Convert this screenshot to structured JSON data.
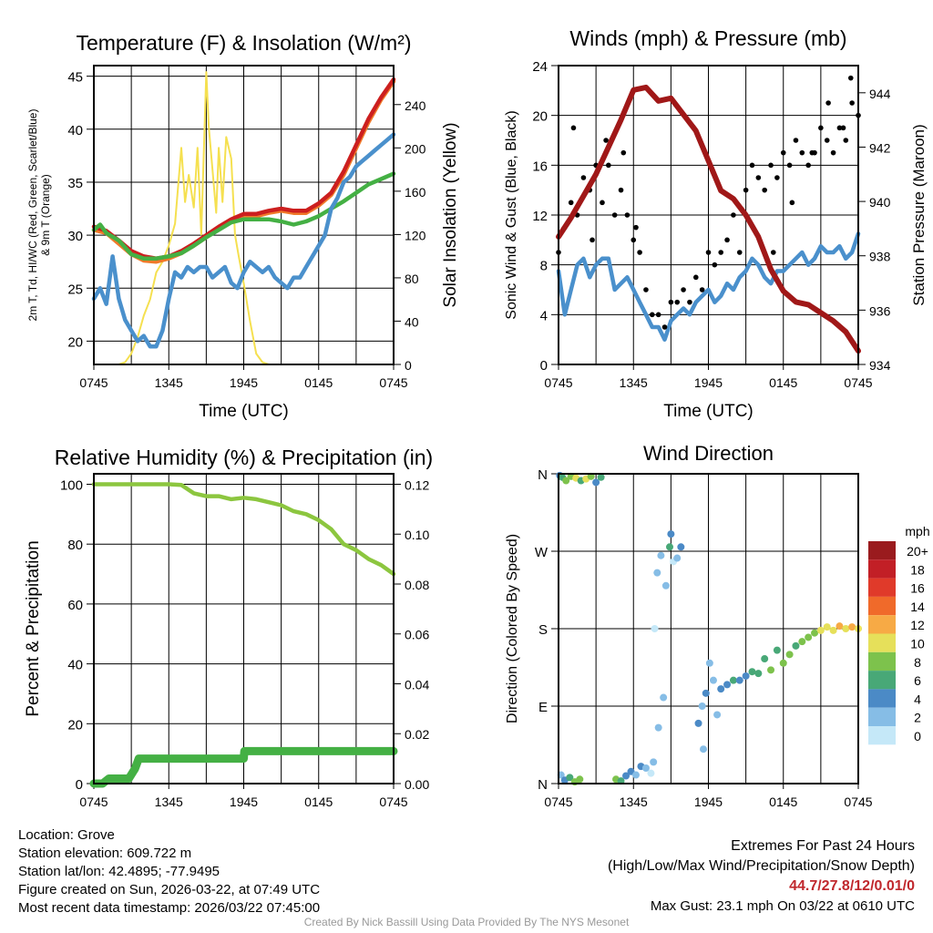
{
  "footer": {
    "location": "Location: Grove",
    "elevation": "Station elevation: 609.722 m",
    "latlon": "Station lat/lon: 42.4895; -77.9495",
    "created": "Figure created on Sun, 2026-03-22, at 07:49 UTC",
    "recent": "Most recent data timestamp: 2026/03/22 07:45:00",
    "extremes_title": "Extremes For Past 24 Hours",
    "extremes_sub": "(High/Low/Max Wind/Precipitation/Snow Depth)",
    "extremes_values": "44.7/27.8/12/0.01/0",
    "max_gust": "Max Gust: 23.1 mph On 03/22 at 0610 UTC",
    "credit": "Created By Nick Bassill Using Data Provided By The NYS Mesonet",
    "extremes_color": "#c0282d"
  },
  "chart_data": [
    {
      "type": "line",
      "title": "Temperature (F) & Insolation (W/m²)",
      "xlabel": "Time (UTC)",
      "ylabel": "2m T, Td, HI/WC (Red, Green, Scarlet/Blue)",
      "ylabel2": "& 9m T (Orange)",
      "y2label": "Solar Insolation (Yellow)",
      "xticks": [
        "0745",
        "1345",
        "1945",
        "0145",
        "0745"
      ],
      "yticks": [
        20,
        25,
        30,
        35,
        40,
        45
      ],
      "y2ticks": [
        0,
        40,
        80,
        120,
        160,
        200,
        240
      ],
      "ylim": [
        17.8,
        46
      ],
      "y2lim": [
        0,
        276
      ],
      "xlim": [
        0,
        24
      ],
      "series": [
        {
          "name": "Solar Insolation",
          "color": "#f5e050",
          "axis": "right",
          "x": [
            0,
            1,
            2,
            2.5,
            3,
            3.5,
            4,
            4.5,
            5,
            5.5,
            6,
            6.5,
            7,
            7.3,
            7.6,
            8,
            8.3,
            8.6,
            9,
            9.2,
            9.5,
            9.8,
            10,
            10.3,
            10.6,
            11,
            11.3,
            11.6,
            12,
            12.5,
            13,
            13.5,
            14,
            24
          ],
          "y": [
            0,
            0,
            0,
            2,
            10,
            25,
            45,
            60,
            85,
            95,
            110,
            130,
            200,
            150,
            175,
            145,
            200,
            120,
            270,
            220,
            180,
            140,
            200,
            150,
            210,
            190,
            120,
            100,
            75,
            40,
            10,
            2,
            0,
            0
          ]
        },
        {
          "name": "9m T",
          "color": "#f07a2a",
          "axis": "left",
          "x": [
            0,
            1,
            2,
            3,
            4,
            5,
            6,
            7,
            8,
            9,
            10,
            11,
            12,
            13,
            14,
            15,
            16,
            17,
            18,
            19,
            20,
            21,
            22,
            23,
            24
          ],
          "y": [
            30.5,
            30.2,
            29.2,
            28.2,
            27.6,
            27.5,
            27.8,
            28.3,
            29,
            29.8,
            30.6,
            31.3,
            31.8,
            31.8,
            32.1,
            32.3,
            32.1,
            32.1,
            32.8,
            33.8,
            35.7,
            38.2,
            40.7,
            42.8,
            44.5
          ]
        },
        {
          "name": "2m T",
          "color": "#cc1f1f",
          "axis": "left",
          "x": [
            0,
            1,
            2,
            3,
            4,
            5,
            6,
            7,
            8,
            9,
            10,
            11,
            12,
            13,
            14,
            15,
            16,
            17,
            18,
            19,
            20,
            21,
            22,
            23,
            24
          ],
          "y": [
            30.8,
            30.4,
            29.5,
            28.5,
            28,
            27.8,
            28,
            28.5,
            29.2,
            30,
            30.8,
            31.5,
            32,
            32,
            32.3,
            32.5,
            32.3,
            32.3,
            33,
            34,
            36,
            38.5,
            41,
            43,
            44.7
          ]
        },
        {
          "name": "2m Td",
          "color": "#44b044",
          "axis": "left",
          "x": [
            0,
            0.5,
            1,
            2,
            3,
            4,
            5,
            6,
            7,
            8,
            9,
            10,
            11,
            12,
            13,
            14,
            15,
            16,
            17,
            18,
            19,
            20,
            21,
            22,
            23,
            24
          ],
          "y": [
            30.5,
            31,
            30.2,
            29.5,
            28.2,
            27.8,
            27.8,
            28,
            28.3,
            29,
            29.8,
            30.5,
            31.2,
            31.5,
            31.5,
            31.5,
            31.3,
            31,
            31.3,
            31.8,
            32.5,
            33.2,
            34,
            34.8,
            35.3,
            35.8
          ]
        },
        {
          "name": "HI/WC",
          "color": "#4a90cc",
          "axis": "left",
          "x": [
            0,
            0.5,
            1,
            1.5,
            2,
            2.5,
            3,
            3.5,
            4,
            4.5,
            5,
            5.5,
            6,
            6.5,
            7,
            7.5,
            8,
            8.5,
            9,
            9.5,
            10,
            10.5,
            11,
            11.5,
            12,
            12.5,
            13,
            13.5,
            14,
            14.5,
            15,
            15.5,
            16,
            16.5,
            17,
            17.5,
            18,
            18.5,
            19,
            19.5,
            20,
            20.5,
            21,
            21.5,
            22,
            22.5,
            23,
            23.5,
            24
          ],
          "y": [
            24,
            25,
            23.5,
            28,
            24,
            22,
            21,
            20,
            20.5,
            19.5,
            19.5,
            21,
            24,
            26.5,
            26,
            27,
            26.5,
            27,
            27,
            26,
            26.5,
            27,
            25.5,
            25,
            26.5,
            27.5,
            27,
            26.5,
            27,
            26,
            25.5,
            25,
            26,
            26,
            27,
            28,
            29,
            30,
            32.5,
            33.5,
            35,
            35.5,
            36.5,
            37,
            37.5,
            38,
            38.5,
            39,
            39.5
          ]
        }
      ]
    },
    {
      "type": "line",
      "title": "Winds (mph) & Pressure (mb)",
      "xlabel": "Time (UTC)",
      "ylabel": "Sonic Wind & Gust (Blue, Black)",
      "y2label": "Station Pressure (Maroon)",
      "xticks": [
        "0745",
        "1345",
        "1945",
        "0145",
        "0745"
      ],
      "yticks": [
        0,
        4,
        8,
        12,
        16,
        20,
        24
      ],
      "y2ticks": [
        934,
        936,
        938,
        940,
        942,
        944
      ],
      "ylim": [
        0,
        24
      ],
      "y2lim": [
        934,
        945
      ],
      "xlim": [
        0,
        24
      ],
      "series": [
        {
          "name": "Sonic Wind",
          "color": "#4a90cc",
          "axis": "left",
          "x": [
            0,
            0.5,
            1,
            1.5,
            2,
            2.5,
            3,
            3.5,
            4,
            4.5,
            5,
            5.5,
            6,
            6.5,
            7,
            7.5,
            8,
            8.5,
            9,
            9.5,
            10,
            10.5,
            11,
            11.5,
            12,
            12.5,
            13,
            13.5,
            14,
            14.5,
            15,
            15.5,
            16,
            16.5,
            17,
            17.5,
            18,
            18.5,
            19,
            19.5,
            20,
            20.5,
            21,
            21.5,
            22,
            22.5,
            23,
            23.5,
            24
          ],
          "y": [
            7.5,
            4,
            6,
            8,
            8.5,
            7,
            8,
            8.5,
            8.5,
            6,
            6.5,
            7,
            6,
            5,
            4,
            3,
            3,
            2,
            3.5,
            4,
            4.5,
            4,
            5,
            5.5,
            6,
            5,
            5.5,
            6.5,
            6,
            7,
            7.5,
            8.5,
            8,
            7,
            6.5,
            7.5,
            7.5,
            8,
            8.5,
            9,
            8,
            8.5,
            9.5,
            9,
            9,
            9.5,
            8.5,
            9,
            10.5
          ]
        },
        {
          "name": "Gust",
          "color": "#000000",
          "axis": "left",
          "type": "scatter",
          "x": [
            0,
            0.5,
            1,
            1.5,
            2,
            2.5,
            3,
            3.5,
            4,
            4.5,
            5,
            5.5,
            6,
            6.5,
            7,
            7.5,
            8,
            8.5,
            9,
            9.5,
            10,
            10.5,
            11,
            11.5,
            12,
            12.5,
            13,
            13.5,
            14,
            14.5,
            15,
            15.5,
            16,
            16.5,
            17,
            17.5,
            18,
            18.5,
            19,
            19.5,
            20,
            20.5,
            21,
            21.5,
            22,
            22.5,
            23,
            23.5,
            24,
            1.2,
            2.7,
            3.8,
            5.2,
            6.2,
            17.2,
            18.7,
            20.3,
            21.6,
            22.8,
            23.4
          ],
          "y": [
            9,
            11,
            13,
            12,
            15,
            14,
            16,
            13,
            16,
            12,
            14,
            12,
            10,
            9,
            6,
            4,
            4,
            3,
            5,
            5,
            6,
            5,
            7,
            6,
            9,
            8,
            9,
            10,
            12,
            9,
            14,
            16,
            15,
            14,
            16,
            15,
            17,
            16,
            18,
            17,
            16,
            17,
            19,
            18,
            17,
            19,
            18,
            21,
            20,
            19,
            10,
            18,
            17,
            11,
            9,
            13,
            17,
            21,
            19,
            23
          ]
        },
        {
          "name": "Station Pressure",
          "color": "#a01818",
          "axis": "right",
          "x": [
            0,
            1,
            2,
            3,
            4,
            5,
            6,
            7,
            8,
            9,
            10,
            11,
            12,
            13,
            14,
            15,
            16,
            17,
            18,
            19,
            20,
            21,
            22,
            23,
            24
          ],
          "y": [
            938.7,
            939.4,
            940.2,
            941,
            942,
            943,
            944.1,
            944.2,
            943.7,
            943.8,
            943.2,
            942.6,
            941.5,
            940.4,
            940.1,
            939.5,
            938.7,
            937.5,
            936.7,
            936.3,
            936.2,
            935.9,
            935.6,
            935.2,
            934.5
          ]
        }
      ]
    },
    {
      "type": "line",
      "title": "Relative Humidity (%) & Precipitation (in)",
      "ylabel": "Percent & Precipitation",
      "xticks": [
        "0745",
        "1345",
        "1945",
        "0145",
        "0745"
      ],
      "yticks": [
        0,
        20,
        40,
        60,
        80,
        100
      ],
      "y2ticks": [
        "0.00",
        "0.02",
        "0.04",
        "0.06",
        "0.08",
        "0.10",
        "0.12"
      ],
      "ylim": [
        0,
        103.5
      ],
      "y2lim": [
        0,
        0.1242
      ],
      "xlim": [
        0,
        24
      ],
      "series": [
        {
          "name": "Relative Humidity",
          "color": "#8cc63f",
          "axis": "left",
          "x": [
            0,
            1,
            2,
            3,
            4,
            5,
            6,
            7,
            8,
            9,
            10,
            11,
            12,
            13,
            14,
            15,
            16,
            17,
            18,
            19,
            20,
            21,
            22,
            23,
            24
          ],
          "y": [
            100,
            100,
            100,
            100,
            100,
            100,
            100,
            99.8,
            97,
            96,
            96,
            95,
            95.5,
            95,
            94,
            93,
            91,
            90,
            88,
            85,
            80,
            78,
            75,
            73,
            70
          ]
        },
        {
          "name": "Precipitation",
          "color": "#44b044",
          "axis": "right",
          "x": [
            0,
            0.7,
            1.2,
            2.8,
            3.3,
            3.6,
            12,
            12.05,
            24
          ],
          "y": [
            0,
            0,
            0.002,
            0.002,
            0.006,
            0.01,
            0.01,
            0.013,
            0.013
          ]
        }
      ]
    },
    {
      "type": "scatter",
      "title": "Wind Direction",
      "ylabel": "Direction (Colored By Speed)",
      "xticks": [
        "0745",
        "1345",
        "1945",
        "0145",
        "0745"
      ],
      "yticks": [
        "N",
        "E",
        "S",
        "W",
        "N"
      ],
      "ylim": [
        0,
        360
      ],
      "xlim": [
        0,
        24
      ],
      "legend_title": "mph",
      "legend_labels": [
        "20+",
        "18",
        "16",
        "14",
        "12",
        "10",
        "8",
        "6",
        "4",
        "2",
        "0"
      ],
      "legend_colors": [
        "#9a1b1e",
        "#c21f26",
        "#e03a2a",
        "#f06a2a",
        "#f7aa45",
        "#e6e05a",
        "#7dc24c",
        "#48a877",
        "#4b8ac6",
        "#86bde6",
        "#c5e8f8"
      ],
      "points": {
        "x": [
          0.1,
          0.3,
          0.6,
          1,
          1.4,
          1.8,
          2.2,
          2.6,
          3,
          3.4,
          0.2,
          0.5,
          0.9,
          1.3,
          1.7,
          4.6,
          5,
          5.4,
          5.8,
          6.2,
          6.6,
          7,
          7.4,
          7.6,
          8,
          8.4,
          9.2,
          9.5,
          9.8,
          7.7,
          7.9,
          8.2,
          8.6,
          8.9,
          9,
          11.5,
          11.8,
          12.1,
          12.4,
          12.7,
          13,
          13.5,
          14,
          15,
          16,
          17,
          18,
          18.5,
          19,
          19.5,
          20,
          20.5,
          21,
          21.5,
          22,
          22.5,
          23,
          23.5,
          24,
          11.2,
          11.6,
          14.5,
          15.5,
          16.5,
          17.5
        ],
        "y": [
          358,
          356,
          352,
          357,
          355,
          352,
          354,
          357,
          350,
          356,
          10,
          4,
          7,
          2,
          5,
          5,
          3,
          9,
          14,
          10,
          20,
          18,
          12,
          25,
          65,
          100,
          258,
          262,
          275,
          180,
          245,
          265,
          230,
          275,
          290,
          90,
          105,
          140,
          120,
          80,
          110,
          115,
          120,
          125,
          128,
          132,
          140,
          150,
          160,
          165,
          170,
          175,
          178,
          182,
          178,
          183,
          180,
          182,
          180,
          70,
          40,
          120,
          130,
          145,
          155
        ],
        "s": [
          5,
          6,
          9,
          8,
          10,
          7,
          10,
          8,
          5,
          6,
          2,
          4,
          6,
          8,
          9,
          8,
          7,
          4,
          5,
          3,
          4,
          2,
          1,
          3,
          3,
          2,
          1,
          2,
          4,
          1,
          2,
          3,
          2,
          6,
          4,
          2,
          4,
          3,
          2,
          3,
          4,
          5,
          6,
          5,
          7,
          8,
          8,
          9,
          7,
          8,
          8,
          9,
          10,
          10,
          11,
          12,
          10,
          12,
          11,
          4,
          3,
          5,
          6,
          6,
          7
        ]
      }
    }
  ]
}
